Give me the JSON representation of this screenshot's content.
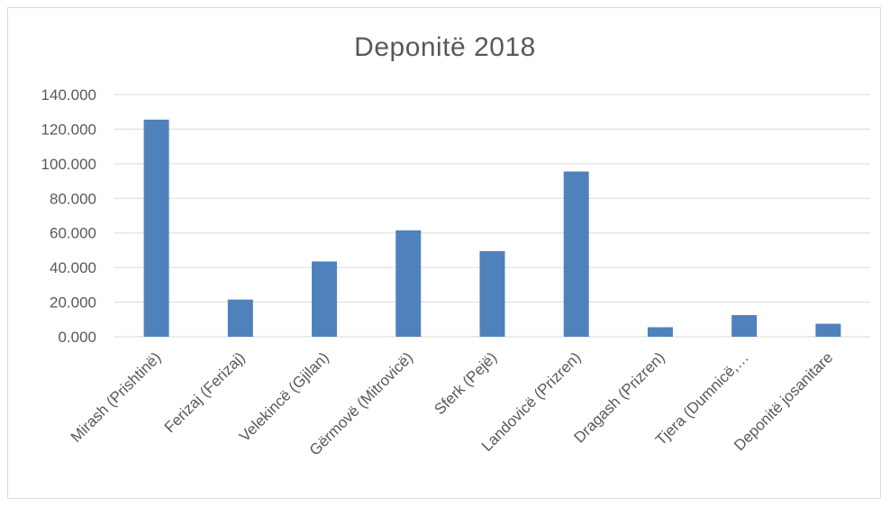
{
  "chart_data": {
    "type": "bar",
    "title": "Deponitë 2018",
    "xlabel": "",
    "ylabel": "",
    "categories": [
      "Mirash (Prishtinë)",
      "Ferizaj (Ferizaj)",
      "Velekincë (Gjilan)",
      "Gërmovë (Mitrovicë)",
      "Sferk (Pejë)",
      "Landovicë (Prizren)",
      "Dragash (Prizren)",
      "Tjera (Dumnicë,…",
      "Deponitë josanitare"
    ],
    "values": [
      125.5,
      21.5,
      43.5,
      61.5,
      49.5,
      95.5,
      5.5,
      12.5,
      7.5
    ],
    "ylim": [
      0,
      140
    ],
    "yticks": [
      0,
      20,
      40,
      60,
      80,
      100,
      120,
      140
    ],
    "ytick_labels": [
      "0.000",
      "20.000",
      "40.000",
      "60.000",
      "80.000",
      "100.000",
      "120.000",
      "140.000"
    ],
    "grid": true,
    "legend": "none",
    "bar_color": "#4f81bd",
    "grid_color": "#d9d9d9"
  }
}
